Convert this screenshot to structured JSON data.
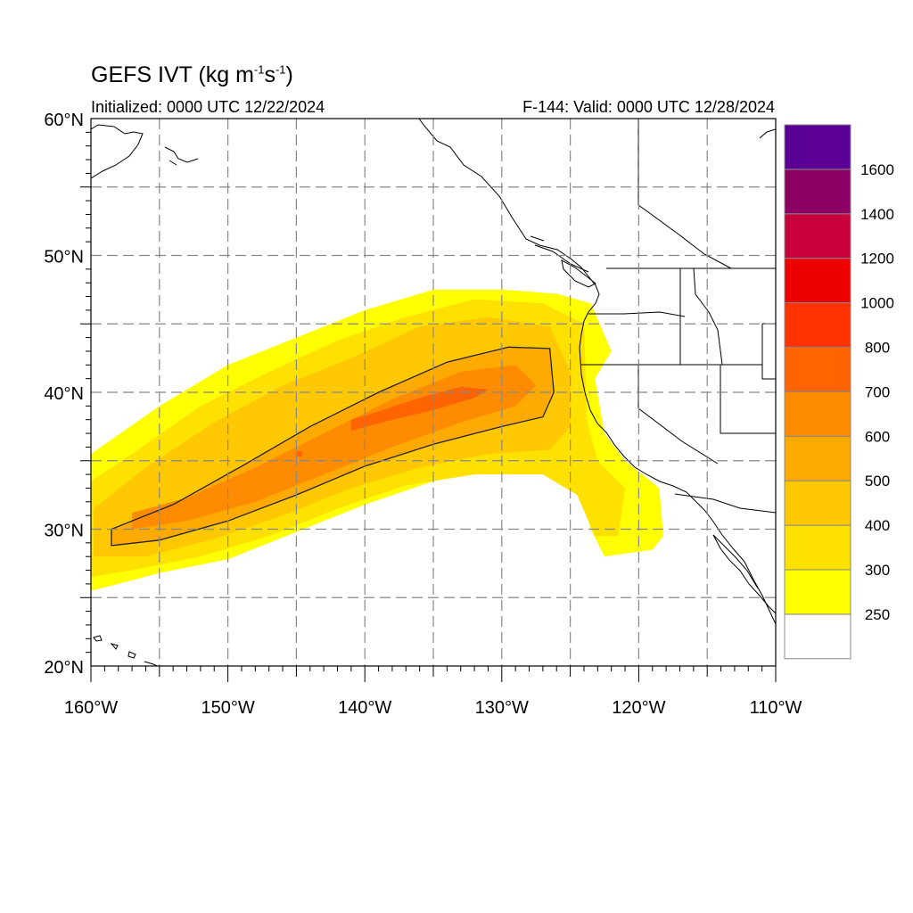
{
  "title": {
    "text": "GEFS IVT (kg m",
    "sup1": "-1",
    "mid": "s",
    "sup2": "-1",
    "end": ")"
  },
  "subtitle_left": "Initialized: 0000 UTC 12/22/2024",
  "subtitle_right": "F-144: Valid: 0000 UTC 12/28/2024",
  "map": {
    "lon_range": [
      -160,
      -110
    ],
    "lat_range": [
      20,
      60
    ],
    "grid": true,
    "x_ticks": [
      "160°W",
      "150°W",
      "140°W",
      "130°W",
      "120°W",
      "110°W"
    ],
    "y_ticks": [
      "60°N",
      "50°N",
      "40°N",
      "30°N",
      "20°N"
    ],
    "contour_level": 500
  },
  "colorbar": {
    "labels": [
      "250",
      "300",
      "400",
      "500",
      "600",
      "700",
      "800",
      "1000",
      "1200",
      "1400",
      "1600"
    ],
    "colors": [
      "#ffff00",
      "#ffe100",
      "#ffc800",
      "#ffaa00",
      "#ff8c00",
      "#ff6400",
      "#ff3200",
      "#ee0000",
      "#c8003c",
      "#8c0064",
      "#5a0096"
    ]
  },
  "chart_data": {
    "type": "heatmap",
    "title": "GEFS IVT (kg m-1s-1)",
    "subtitle": [
      "Initialized: 0000 UTC 12/22/2024",
      "F-144: Valid: 0000 UTC 12/28/2024"
    ],
    "xlabel": "",
    "ylabel": "",
    "xlim": [
      -160,
      -110
    ],
    "ylim": [
      20,
      60
    ],
    "x_ticks": [
      "160°W",
      "150°W",
      "140°W",
      "130°W",
      "120°W",
      "110°W"
    ],
    "y_ticks": [
      "60°N",
      "50°N",
      "40°N",
      "30°N",
      "20°N"
    ],
    "levels": [
      250,
      300,
      400,
      500,
      600,
      700,
      800,
      1000,
      1200,
      1400,
      1600
    ],
    "grid": true,
    "legend": "right",
    "regions": [
      {
        "level": 250,
        "points": [
          [
            -160,
            25.5
          ],
          [
            -158,
            26
          ],
          [
            -155,
            26.8
          ],
          [
            -150,
            27.8
          ],
          [
            -145,
            29.8
          ],
          [
            -140,
            31.8
          ],
          [
            -135,
            33.5
          ],
          [
            -130,
            34.5
          ],
          [
            -126,
            34.2
          ],
          [
            -124.5,
            33.5
          ],
          [
            -123.5,
            30
          ],
          [
            -122.5,
            28
          ],
          [
            -119,
            28.5
          ],
          [
            -118.2,
            29.5
          ],
          [
            -118.5,
            33
          ],
          [
            -121,
            35
          ],
          [
            -122.5,
            37
          ],
          [
            -123.2,
            41
          ],
          [
            -122,
            43
          ],
          [
            -123.5,
            46.5
          ],
          [
            -126,
            47.2
          ],
          [
            -130,
            47.5
          ],
          [
            -135,
            47.5
          ],
          [
            -140,
            46
          ],
          [
            -145,
            44
          ],
          [
            -150,
            42
          ],
          [
            -155,
            39
          ],
          [
            -160,
            35.5
          ]
        ]
      },
      {
        "level": 300,
        "points": [
          [
            -160,
            26.5
          ],
          [
            -157,
            27
          ],
          [
            -152,
            28
          ],
          [
            -147,
            29.5
          ],
          [
            -142,
            31.5
          ],
          [
            -137,
            33.2
          ],
          [
            -132,
            34
          ],
          [
            -127,
            34
          ],
          [
            -124.5,
            32.5
          ],
          [
            -123.2,
            29.5
          ],
          [
            -121.5,
            29.5
          ],
          [
            -121,
            33
          ],
          [
            -123,
            35
          ],
          [
            -123.8,
            38
          ],
          [
            -123.9,
            42
          ],
          [
            -124,
            45
          ],
          [
            -127,
            46.5
          ],
          [
            -132,
            46.8
          ],
          [
            -137,
            45.5
          ],
          [
            -142,
            43.8
          ],
          [
            -147,
            41.5
          ],
          [
            -152,
            39
          ],
          [
            -157,
            35.5
          ],
          [
            -160,
            33.5
          ]
        ]
      },
      {
        "level": 400,
        "points": [
          [
            -159.8,
            28
          ],
          [
            -156,
            28
          ],
          [
            -151,
            29.3
          ],
          [
            -146,
            31
          ],
          [
            -141,
            33
          ],
          [
            -136,
            34.5
          ],
          [
            -131,
            35.5
          ],
          [
            -126.5,
            35.8
          ],
          [
            -125,
            37.5
          ],
          [
            -125,
            41.5
          ],
          [
            -126.5,
            44.8
          ],
          [
            -131,
            45.5
          ],
          [
            -136,
            44.8
          ],
          [
            -141,
            42.5
          ],
          [
            -146,
            40.5
          ],
          [
            -151,
            37.8
          ],
          [
            -156,
            34.5
          ],
          [
            -159.8,
            31.5
          ]
        ]
      },
      {
        "level": 500,
        "points": [
          [
            -158.5,
            28.8
          ],
          [
            -155,
            29.2
          ],
          [
            -150,
            30.6
          ],
          [
            -145,
            32.5
          ],
          [
            -140,
            34.6
          ],
          [
            -135,
            36.2
          ],
          [
            -130,
            37.5
          ],
          [
            -127,
            38.2
          ],
          [
            -126.2,
            40
          ],
          [
            -126.5,
            43.2
          ],
          [
            -129.5,
            43.3
          ],
          [
            -134,
            42.2
          ],
          [
            -139,
            40
          ],
          [
            -144,
            37.5
          ],
          [
            -149,
            34.6
          ],
          [
            -154,
            31.8
          ],
          [
            -158.5,
            30
          ]
        ]
      },
      {
        "level": 600,
        "points": [
          [
            -157,
            30
          ],
          [
            -153,
            30.6
          ],
          [
            -148,
            32
          ],
          [
            -143,
            34
          ],
          [
            -138,
            36
          ],
          [
            -133,
            37.8
          ],
          [
            -129,
            39
          ],
          [
            -127.5,
            40.5
          ],
          [
            -129,
            42
          ],
          [
            -133,
            41.5
          ],
          [
            -138,
            39.5
          ],
          [
            -143,
            37
          ],
          [
            -148,
            34.5
          ],
          [
            -153,
            32.3
          ],
          [
            -157,
            31.2
          ]
        ]
      },
      {
        "level": 700,
        "points": [
          [
            -141,
            37.2
          ],
          [
            -138,
            38
          ],
          [
            -135,
            38.7
          ],
          [
            -132,
            39.6
          ],
          [
            -131,
            40.2
          ],
          [
            -133,
            40.4
          ],
          [
            -136,
            39.6
          ],
          [
            -139,
            38.6
          ],
          [
            -141,
            38
          ]
        ]
      },
      {
        "level": 700,
        "points": [
          [
            -145,
            35.3
          ],
          [
            -144.6,
            35.3
          ],
          [
            -144.6,
            35.7
          ],
          [
            -145,
            35.7
          ]
        ]
      }
    ]
  }
}
